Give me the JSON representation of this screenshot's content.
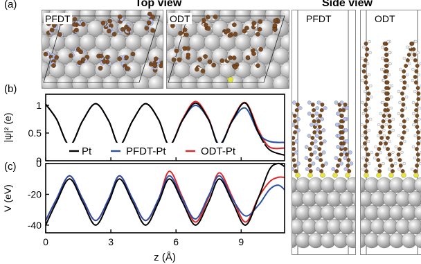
{
  "panels": {
    "a": "(a)",
    "b": "(b)",
    "c": "(c)"
  },
  "headings": {
    "top_view": "Top view",
    "side_view": "Side view"
  },
  "top_view_images": [
    "PFDT",
    "ODT"
  ],
  "side_view_images": [
    "PFDT",
    "ODT"
  ],
  "colors": {
    "Pt": "#000000",
    "PFDT-Pt": "#2c4fa3",
    "ODT-Pt": "#e0262a",
    "carbon": "#7a4a22",
    "fluorine": "#b9c2e8",
    "hydrogen": "#f2f2f2",
    "sulfur": "#e3e342",
    "platinum": "#a7a7a7"
  },
  "chart_data": [
    {
      "type": "line",
      "panel": "(b)",
      "ylabel": "|ψ|² (e)",
      "ylim": [
        0,
        1.2
      ],
      "yticks": [
        0,
        0.5,
        1
      ],
      "xlim": [
        0,
        11
      ],
      "xticks": [
        0,
        3,
        6,
        9
      ],
      "legend_placement": "bottom",
      "series": [
        {
          "name": "Pt",
          "x": [
            0,
            0.5,
            1.1,
            1.7,
            2.3,
            2.9,
            3.4,
            4.0,
            4.6,
            5.2,
            5.7,
            6.3,
            6.9,
            7.5,
            8.0,
            8.6,
            9.2,
            9.8,
            10.3,
            11
          ],
          "y": [
            1.02,
            0.75,
            0.28,
            0.72,
            1.03,
            0.72,
            0.28,
            0.72,
            1.03,
            0.74,
            0.28,
            0.73,
            1.04,
            0.74,
            0.28,
            0.73,
            1.04,
            0.5,
            0.2,
            0.1
          ]
        },
        {
          "name": "PFDT-Pt",
          "x": [
            0,
            0.5,
            1.1,
            1.7,
            2.3,
            2.9,
            3.4,
            4.0,
            4.6,
            5.2,
            5.7,
            6.3,
            6.9,
            7.5,
            8.0,
            8.6,
            9.2,
            9.8,
            10.3,
            11
          ],
          "y": [
            1.02,
            0.75,
            0.28,
            0.72,
            1.03,
            0.72,
            0.28,
            0.72,
            1.03,
            0.74,
            0.28,
            0.73,
            1.0,
            0.74,
            0.3,
            0.72,
            0.95,
            0.5,
            0.35,
            0.33
          ]
        },
        {
          "name": "ODT-Pt",
          "x": [
            0,
            0.5,
            1.1,
            1.7,
            2.3,
            2.9,
            3.4,
            4.0,
            4.6,
            5.2,
            5.7,
            6.3,
            6.9,
            7.5,
            8.0,
            8.6,
            9.2,
            9.8,
            10.3,
            11
          ],
          "y": [
            1.02,
            0.75,
            0.28,
            0.72,
            1.03,
            0.72,
            0.28,
            0.72,
            1.03,
            0.74,
            0.28,
            0.75,
            1.07,
            0.76,
            0.28,
            0.75,
            1.05,
            0.55,
            0.25,
            0.23
          ]
        }
      ]
    },
    {
      "type": "line",
      "panel": "(c)",
      "ylabel": "V (eV)",
      "xlabel": "z (Å)",
      "ylim": [
        -45,
        0
      ],
      "yticks": [
        -40,
        -20,
        0
      ],
      "xlim": [
        0,
        11
      ],
      "xticks": [
        0,
        3,
        6,
        9
      ],
      "xticklabels": [
        "0",
        "3",
        "6",
        "9"
      ],
      "series": [
        {
          "name": "Pt",
          "x": [
            0,
            0.5,
            1.1,
            1.7,
            2.3,
            2.9,
            3.4,
            4.0,
            4.6,
            5.2,
            5.7,
            6.3,
            6.9,
            7.5,
            8.0,
            8.6,
            9.2,
            9.8,
            10.3,
            10.7,
            11
          ],
          "y": [
            -40,
            -25,
            -10,
            -25,
            -40,
            -25,
            -10,
            -25,
            -40,
            -25,
            -10,
            -25,
            -40,
            -25,
            -10,
            -25,
            -40,
            -22,
            -4,
            0,
            -2
          ]
        },
        {
          "name": "PFDT-Pt",
          "x": [
            0,
            0.5,
            1.1,
            1.7,
            2.3,
            2.9,
            3.4,
            4.0,
            4.6,
            5.2,
            5.7,
            6.3,
            6.9,
            7.5,
            8.0,
            8.6,
            9.2,
            9.8,
            10.3,
            10.7,
            11
          ],
          "y": [
            -37,
            -23,
            -8,
            -23,
            -37,
            -23,
            -8,
            -23,
            -37,
            -23,
            -8,
            -23,
            -36,
            -21,
            -8,
            -23,
            -34,
            -27,
            -17,
            -14,
            -17
          ]
        },
        {
          "name": "ODT-Pt",
          "x": [
            0,
            0.5,
            1.1,
            1.7,
            2.3,
            2.9,
            3.4,
            4.0,
            4.6,
            5.2,
            5.7,
            6.3,
            6.9,
            7.5,
            8.0,
            8.6,
            9.2,
            9.8,
            10.3,
            10.7,
            11
          ],
          "y": [
            -37,
            -23,
            -8,
            -23,
            -37,
            -23,
            -8,
            -23,
            -37,
            -23,
            -5,
            -22,
            -38,
            -22,
            -6,
            -22,
            -38,
            -22,
            -12,
            -9,
            -9
          ]
        }
      ]
    }
  ]
}
